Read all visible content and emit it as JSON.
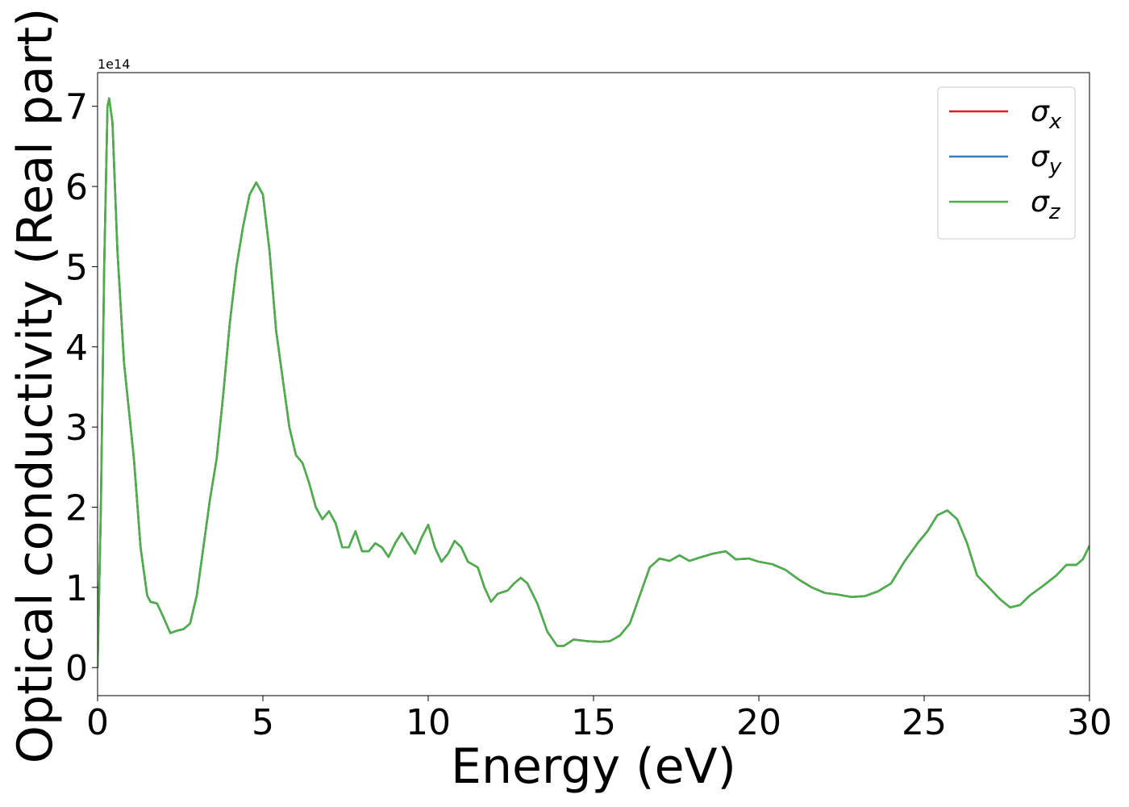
{
  "chart_data": {
    "type": "line",
    "xlabel": "Energy (eV)",
    "ylabel": "Optical conductivity (Real part)",
    "y_offset_label": "1e14",
    "xlim": [
      0,
      30
    ],
    "ylim": [
      -0.35,
      7.42
    ],
    "xticks": [
      0,
      5,
      10,
      15,
      20,
      25,
      30
    ],
    "yticks": [
      0,
      1,
      2,
      3,
      4,
      5,
      6,
      7
    ],
    "legend": "upper right",
    "x": [
      0.0,
      0.1,
      0.2,
      0.3,
      0.35,
      0.45,
      0.6,
      0.8,
      1.0,
      1.1,
      1.3,
      1.5,
      1.6,
      1.8,
      2.0,
      2.2,
      2.4,
      2.6,
      2.8,
      3.0,
      3.2,
      3.4,
      3.6,
      3.8,
      4.0,
      4.2,
      4.4,
      4.6,
      4.8,
      5.0,
      5.2,
      5.4,
      5.6,
      5.8,
      6.0,
      6.2,
      6.4,
      6.6,
      6.8,
      7.0,
      7.2,
      7.4,
      7.6,
      7.8,
      8.0,
      8.2,
      8.4,
      8.6,
      8.8,
      9.0,
      9.2,
      9.4,
      9.6,
      9.8,
      10.0,
      10.2,
      10.4,
      10.6,
      10.8,
      11.0,
      11.2,
      11.5,
      11.7,
      11.9,
      12.1,
      12.4,
      12.6,
      12.8,
      13.0,
      13.3,
      13.6,
      13.9,
      14.1,
      14.4,
      14.8,
      15.2,
      15.5,
      15.8,
      16.1,
      16.4,
      16.7,
      17.0,
      17.3,
      17.6,
      17.9,
      18.2,
      18.6,
      19.0,
      19.3,
      19.7,
      20.0,
      20.4,
      20.8,
      21.2,
      21.6,
      22.0,
      22.4,
      22.8,
      23.2,
      23.6,
      24.0,
      24.4,
      24.8,
      25.1,
      25.4,
      25.7,
      26.0,
      26.3,
      26.6,
      27.0,
      27.3,
      27.6,
      27.9,
      28.2,
      28.6,
      29.0,
      29.3,
      29.6,
      29.8,
      30.0
    ],
    "series": [
      {
        "name": "σx",
        "color": "#e41a1c",
        "values": [
          0.0,
          2.0,
          5.0,
          7.0,
          7.1,
          6.8,
          5.2,
          3.8,
          3.0,
          2.6,
          1.5,
          0.9,
          0.82,
          0.8,
          0.62,
          0.43,
          0.46,
          0.48,
          0.55,
          0.9,
          1.5,
          2.1,
          2.6,
          3.4,
          4.3,
          5.0,
          5.5,
          5.9,
          6.05,
          5.9,
          5.2,
          4.2,
          3.6,
          3.0,
          2.65,
          2.55,
          2.3,
          2.0,
          1.85,
          1.95,
          1.8,
          1.5,
          1.5,
          1.7,
          1.45,
          1.45,
          1.55,
          1.5,
          1.38,
          1.55,
          1.68,
          1.55,
          1.42,
          1.62,
          1.78,
          1.5,
          1.32,
          1.42,
          1.58,
          1.5,
          1.32,
          1.25,
          1.0,
          0.82,
          0.92,
          0.96,
          1.05,
          1.12,
          1.05,
          0.8,
          0.45,
          0.27,
          0.27,
          0.35,
          0.33,
          0.32,
          0.33,
          0.4,
          0.55,
          0.9,
          1.25,
          1.36,
          1.33,
          1.4,
          1.33,
          1.37,
          1.42,
          1.45,
          1.35,
          1.36,
          1.32,
          1.29,
          1.22,
          1.1,
          1.0,
          0.93,
          0.91,
          0.88,
          0.89,
          0.95,
          1.05,
          1.32,
          1.55,
          1.7,
          1.9,
          1.96,
          1.85,
          1.55,
          1.15,
          0.98,
          0.85,
          0.75,
          0.78,
          0.9,
          1.02,
          1.15,
          1.28,
          1.28,
          1.35,
          1.52
        ]
      },
      {
        "name": "σy",
        "color": "#377eb8",
        "values": [
          0.0,
          2.0,
          5.0,
          7.0,
          7.1,
          6.8,
          5.2,
          3.8,
          3.0,
          2.6,
          1.5,
          0.9,
          0.82,
          0.8,
          0.62,
          0.43,
          0.46,
          0.48,
          0.55,
          0.9,
          1.5,
          2.1,
          2.6,
          3.4,
          4.3,
          5.0,
          5.5,
          5.9,
          6.05,
          5.9,
          5.2,
          4.2,
          3.6,
          3.0,
          2.65,
          2.55,
          2.3,
          2.0,
          1.85,
          1.95,
          1.8,
          1.5,
          1.5,
          1.7,
          1.45,
          1.45,
          1.55,
          1.5,
          1.38,
          1.55,
          1.68,
          1.55,
          1.42,
          1.62,
          1.78,
          1.5,
          1.32,
          1.42,
          1.58,
          1.5,
          1.32,
          1.25,
          1.0,
          0.82,
          0.92,
          0.96,
          1.05,
          1.12,
          1.05,
          0.8,
          0.45,
          0.27,
          0.27,
          0.35,
          0.33,
          0.32,
          0.33,
          0.4,
          0.55,
          0.9,
          1.25,
          1.36,
          1.33,
          1.4,
          1.33,
          1.37,
          1.42,
          1.45,
          1.35,
          1.36,
          1.32,
          1.29,
          1.22,
          1.1,
          1.0,
          0.93,
          0.91,
          0.88,
          0.89,
          0.95,
          1.05,
          1.32,
          1.55,
          1.7,
          1.9,
          1.96,
          1.85,
          1.55,
          1.15,
          0.98,
          0.85,
          0.75,
          0.78,
          0.9,
          1.02,
          1.15,
          1.28,
          1.28,
          1.35,
          1.52
        ]
      },
      {
        "name": "σz",
        "color": "#4daf4a",
        "values": [
          0.0,
          2.0,
          5.0,
          7.0,
          7.1,
          6.8,
          5.2,
          3.8,
          3.0,
          2.6,
          1.5,
          0.9,
          0.82,
          0.8,
          0.62,
          0.43,
          0.46,
          0.48,
          0.55,
          0.9,
          1.5,
          2.1,
          2.6,
          3.4,
          4.3,
          5.0,
          5.5,
          5.9,
          6.05,
          5.9,
          5.2,
          4.2,
          3.6,
          3.0,
          2.65,
          2.55,
          2.3,
          2.0,
          1.85,
          1.95,
          1.8,
          1.5,
          1.5,
          1.7,
          1.45,
          1.45,
          1.55,
          1.5,
          1.38,
          1.55,
          1.68,
          1.55,
          1.42,
          1.62,
          1.78,
          1.5,
          1.32,
          1.42,
          1.58,
          1.5,
          1.32,
          1.25,
          1.0,
          0.82,
          0.92,
          0.96,
          1.05,
          1.12,
          1.05,
          0.8,
          0.45,
          0.27,
          0.27,
          0.35,
          0.33,
          0.32,
          0.33,
          0.4,
          0.55,
          0.9,
          1.25,
          1.36,
          1.33,
          1.4,
          1.33,
          1.37,
          1.42,
          1.45,
          1.35,
          1.36,
          1.32,
          1.29,
          1.22,
          1.1,
          1.0,
          0.93,
          0.91,
          0.88,
          0.89,
          0.95,
          1.05,
          1.32,
          1.55,
          1.7,
          1.9,
          1.96,
          1.85,
          1.55,
          1.15,
          0.98,
          0.85,
          0.75,
          0.78,
          0.9,
          1.02,
          1.15,
          1.28,
          1.28,
          1.35,
          1.52
        ]
      }
    ]
  }
}
